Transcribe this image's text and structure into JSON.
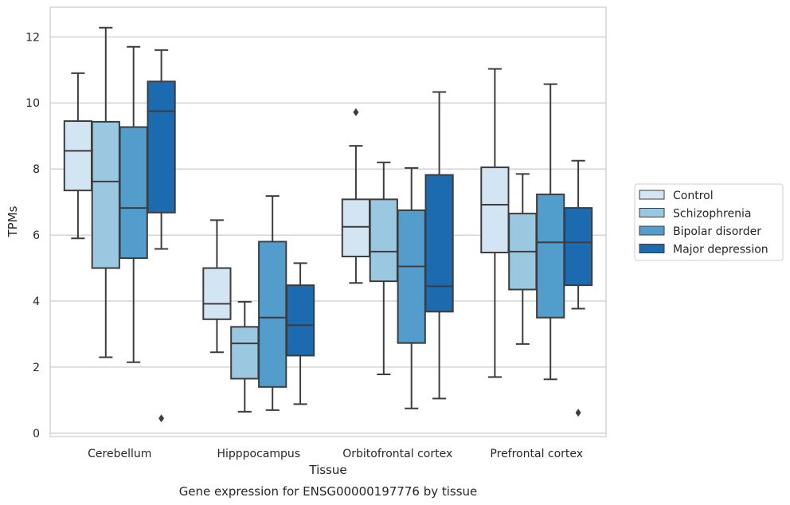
{
  "caption": "Gene expression for ENSG00000197776 by tissue",
  "chart_data": {
    "type": "boxplot",
    "xlabel": "Tissue",
    "ylabel": "TPMs",
    "ylim": [
      -0.1,
      12.9
    ],
    "yticks": [
      0,
      2,
      4,
      6,
      8,
      10,
      12
    ],
    "grid": true,
    "legend_position": "right",
    "categories": [
      "Cerebellum",
      "Hipppocampus",
      "Orbitofrontal cortex",
      "Prefrontal cortex"
    ],
    "series": [
      {
        "name": "Control",
        "color": "#d3e4f3",
        "boxes": [
          {
            "whislo": 5.9,
            "q1": 7.35,
            "med": 8.55,
            "q3": 9.45,
            "whishi": 10.9,
            "fliers": []
          },
          {
            "whislo": 2.45,
            "q1": 3.45,
            "med": 3.92,
            "q3": 5.0,
            "whishi": 6.45,
            "fliers": []
          },
          {
            "whislo": 4.55,
            "q1": 5.35,
            "med": 6.25,
            "q3": 7.08,
            "whishi": 8.7,
            "fliers": [
              9.72
            ]
          },
          {
            "whislo": 1.7,
            "q1": 5.47,
            "med": 6.92,
            "q3": 8.05,
            "whishi": 11.03,
            "fliers": []
          }
        ]
      },
      {
        "name": "Schizophrenia",
        "color": "#9ac8e0",
        "boxes": [
          {
            "whislo": 2.3,
            "q1": 5.0,
            "med": 7.62,
            "q3": 9.43,
            "whishi": 12.28,
            "fliers": []
          },
          {
            "whislo": 0.65,
            "q1": 1.65,
            "med": 2.72,
            "q3": 3.22,
            "whishi": 3.98,
            "fliers": []
          },
          {
            "whislo": 1.78,
            "q1": 4.6,
            "med": 5.5,
            "q3": 7.08,
            "whishi": 8.2,
            "fliers": []
          },
          {
            "whislo": 2.7,
            "q1": 4.35,
            "med": 5.5,
            "q3": 6.65,
            "whishi": 7.85,
            "fliers": []
          }
        ]
      },
      {
        "name": "Bipolar disorder",
        "color": "#529dcc",
        "boxes": [
          {
            "whislo": 2.15,
            "q1": 5.3,
            "med": 6.82,
            "q3": 9.27,
            "whishi": 11.7,
            "fliers": []
          },
          {
            "whislo": 0.7,
            "q1": 1.4,
            "med": 3.5,
            "q3": 5.8,
            "whishi": 7.18,
            "fliers": []
          },
          {
            "whislo": 0.75,
            "q1": 2.73,
            "med": 5.05,
            "q3": 6.75,
            "whishi": 8.03,
            "fliers": []
          },
          {
            "whislo": 1.63,
            "q1": 3.5,
            "med": 5.78,
            "q3": 7.23,
            "whishi": 10.57,
            "fliers": []
          }
        ]
      },
      {
        "name": "Major depression",
        "color": "#1c6aaf",
        "boxes": [
          {
            "whislo": 5.58,
            "q1": 6.68,
            "med": 9.75,
            "q3": 10.65,
            "whishi": 11.6,
            "fliers": [
              0.45
            ]
          },
          {
            "whislo": 0.88,
            "q1": 2.35,
            "med": 3.27,
            "q3": 4.48,
            "whishi": 5.15,
            "fliers": []
          },
          {
            "whislo": 1.05,
            "q1": 3.68,
            "med": 4.45,
            "q3": 7.82,
            "whishi": 10.33,
            "fliers": []
          },
          {
            "whislo": 3.77,
            "q1": 4.48,
            "med": 5.78,
            "q3": 6.82,
            "whishi": 8.25,
            "fliers": [
              0.62
            ]
          }
        ]
      }
    ]
  }
}
